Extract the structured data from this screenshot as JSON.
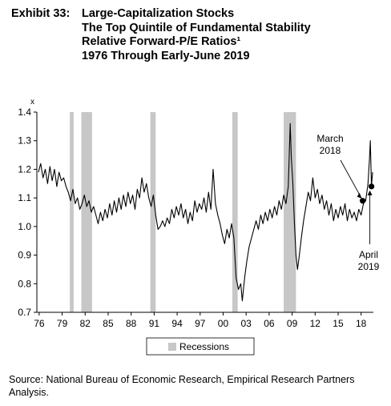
{
  "header": {
    "label": "Exhibit 33:",
    "lines": [
      "Large-Capitalization Stocks",
      "The Top Quintile of Fundamental Stability",
      "Relative Forward-P/E Ratios¹",
      "1976 Through Early-June 2019"
    ]
  },
  "chart_data": {
    "type": "line",
    "y_unit": "x",
    "ylim": [
      0.7,
      1.4
    ],
    "yticks": [
      "1.4",
      "1.3",
      "1.2",
      "1.1",
      "1.0",
      "0.9",
      "0.8",
      "0.7"
    ],
    "xlim": [
      1975.7,
      2019.6
    ],
    "xticks": [
      "76",
      "79",
      "82",
      "85",
      "88",
      "91",
      "94",
      "97",
      "00",
      "03",
      "06",
      "09",
      "12",
      "15",
      "18"
    ],
    "series": [
      {
        "color": "#000000",
        "points": [
          [
            1975.9,
            1.19
          ],
          [
            1976.2,
            1.22
          ],
          [
            1976.5,
            1.17
          ],
          [
            1976.8,
            1.2
          ],
          [
            1977.1,
            1.15
          ],
          [
            1977.4,
            1.21
          ],
          [
            1977.7,
            1.16
          ],
          [
            1978.0,
            1.2
          ],
          [
            1978.3,
            1.14
          ],
          [
            1978.6,
            1.19
          ],
          [
            1978.9,
            1.16
          ],
          [
            1979.2,
            1.17
          ],
          [
            1979.5,
            1.14
          ],
          [
            1979.8,
            1.12
          ],
          [
            1980.1,
            1.09
          ],
          [
            1980.4,
            1.13
          ],
          [
            1980.7,
            1.08
          ],
          [
            1981.0,
            1.1
          ],
          [
            1981.3,
            1.06
          ],
          [
            1981.6,
            1.08
          ],
          [
            1981.9,
            1.11
          ],
          [
            1982.2,
            1.07
          ],
          [
            1982.5,
            1.09
          ],
          [
            1982.8,
            1.05
          ],
          [
            1983.1,
            1.07
          ],
          [
            1983.4,
            1.04
          ],
          [
            1983.7,
            1.01
          ],
          [
            1984.0,
            1.05
          ],
          [
            1984.3,
            1.02
          ],
          [
            1984.6,
            1.06
          ],
          [
            1984.9,
            1.03
          ],
          [
            1985.2,
            1.08
          ],
          [
            1985.5,
            1.04
          ],
          [
            1985.8,
            1.09
          ],
          [
            1986.1,
            1.05
          ],
          [
            1986.4,
            1.1
          ],
          [
            1986.7,
            1.06
          ],
          [
            1987.0,
            1.11
          ],
          [
            1987.3,
            1.07
          ],
          [
            1987.6,
            1.12
          ],
          [
            1987.9,
            1.08
          ],
          [
            1988.2,
            1.11
          ],
          [
            1988.5,
            1.06
          ],
          [
            1988.8,
            1.13
          ],
          [
            1989.1,
            1.1
          ],
          [
            1989.4,
            1.17
          ],
          [
            1989.7,
            1.12
          ],
          [
            1990.0,
            1.15
          ],
          [
            1990.3,
            1.1
          ],
          [
            1990.6,
            1.07
          ],
          [
            1990.9,
            1.11
          ],
          [
            1991.2,
            1.04
          ],
          [
            1991.5,
            0.99
          ],
          [
            1991.8,
            1.0
          ],
          [
            1992.1,
            1.02
          ],
          [
            1992.4,
            1.0
          ],
          [
            1992.7,
            1.03
          ],
          [
            1993.0,
            1.01
          ],
          [
            1993.3,
            1.06
          ],
          [
            1993.6,
            1.03
          ],
          [
            1993.9,
            1.07
          ],
          [
            1994.2,
            1.04
          ],
          [
            1994.5,
            1.08
          ],
          [
            1994.8,
            1.03
          ],
          [
            1995.1,
            1.06
          ],
          [
            1995.4,
            1.01
          ],
          [
            1995.7,
            1.05
          ],
          [
            1996.0,
            1.02
          ],
          [
            1996.3,
            1.09
          ],
          [
            1996.6,
            1.05
          ],
          [
            1996.9,
            1.08
          ],
          [
            1997.2,
            1.06
          ],
          [
            1997.5,
            1.1
          ],
          [
            1997.8,
            1.05
          ],
          [
            1998.1,
            1.12
          ],
          [
            1998.4,
            1.06
          ],
          [
            1998.7,
            1.2
          ],
          [
            1999.0,
            1.08
          ],
          [
            1999.3,
            1.04
          ],
          [
            1999.6,
            1.01
          ],
          [
            1999.9,
            0.97
          ],
          [
            2000.2,
            0.94
          ],
          [
            2000.5,
            0.99
          ],
          [
            2000.8,
            0.96
          ],
          [
            2001.1,
            1.01
          ],
          [
            2001.4,
            0.96
          ],
          [
            2001.7,
            0.82
          ],
          [
            2002.0,
            0.78
          ],
          [
            2002.3,
            0.8
          ],
          [
            2002.5,
            0.74
          ],
          [
            2002.8,
            0.82
          ],
          [
            2003.1,
            0.88
          ],
          [
            2003.4,
            0.93
          ],
          [
            2003.7,
            0.96
          ],
          [
            2004.0,
            0.99
          ],
          [
            2004.3,
            1.02
          ],
          [
            2004.6,
            0.99
          ],
          [
            2004.9,
            1.04
          ],
          [
            2005.2,
            1.01
          ],
          [
            2005.5,
            1.05
          ],
          [
            2005.8,
            1.02
          ],
          [
            2006.1,
            1.06
          ],
          [
            2006.4,
            1.03
          ],
          [
            2006.7,
            1.07
          ],
          [
            2007.0,
            1.04
          ],
          [
            2007.3,
            1.09
          ],
          [
            2007.6,
            1.06
          ],
          [
            2007.9,
            1.11
          ],
          [
            2008.2,
            1.08
          ],
          [
            2008.5,
            1.14
          ],
          [
            2008.75,
            1.36
          ],
          [
            2008.9,
            1.24
          ],
          [
            2009.1,
            1.15
          ],
          [
            2009.3,
            1.01
          ],
          [
            2009.5,
            0.9
          ],
          [
            2009.7,
            0.85
          ],
          [
            2009.9,
            0.89
          ],
          [
            2010.2,
            0.96
          ],
          [
            2010.5,
            1.02
          ],
          [
            2010.8,
            1.07
          ],
          [
            2011.1,
            1.12
          ],
          [
            2011.4,
            1.09
          ],
          [
            2011.7,
            1.17
          ],
          [
            2012.0,
            1.1
          ],
          [
            2012.3,
            1.13
          ],
          [
            2012.6,
            1.08
          ],
          [
            2012.9,
            1.11
          ],
          [
            2013.2,
            1.06
          ],
          [
            2013.5,
            1.09
          ],
          [
            2013.8,
            1.04
          ],
          [
            2014.1,
            1.08
          ],
          [
            2014.4,
            1.02
          ],
          [
            2014.7,
            1.06
          ],
          [
            2015.0,
            1.03
          ],
          [
            2015.3,
            1.07
          ],
          [
            2015.6,
            1.04
          ],
          [
            2015.9,
            1.08
          ],
          [
            2016.2,
            1.02
          ],
          [
            2016.5,
            1.06
          ],
          [
            2016.8,
            1.03
          ],
          [
            2017.1,
            1.05
          ],
          [
            2017.4,
            1.02
          ],
          [
            2017.7,
            1.06
          ],
          [
            2018.0,
            1.04
          ],
          [
            2018.3,
            1.08
          ],
          [
            2018.6,
            1.09
          ],
          [
            2018.9,
            1.15
          ],
          [
            2019.1,
            1.24
          ],
          [
            2019.2,
            1.3
          ],
          [
            2019.35,
            1.14
          ],
          [
            2019.5,
            1.19
          ]
        ]
      }
    ],
    "recessions": [
      [
        1980.0,
        1980.5
      ],
      [
        1981.5,
        1982.9
      ],
      [
        1990.5,
        1991.2
      ],
      [
        2001.2,
        2001.9
      ],
      [
        2007.9,
        2009.5
      ]
    ],
    "markers": [
      {
        "x": 2018.2,
        "y": 1.09
      },
      {
        "x": 2019.35,
        "y": 1.14
      }
    ],
    "annotations": [
      {
        "text": [
          "March",
          "2018"
        ]
      },
      {
        "text": [
          "April",
          "2019"
        ]
      }
    ],
    "legend": {
      "label": "Recessions",
      "swatch_color": "#c7c7c7"
    },
    "colors": {
      "recession": "#c7c7c7",
      "line": "#000000",
      "axis": "#000000"
    }
  },
  "source": "Source: National Bureau of Economic Research, Empirical Research Partners Analysis."
}
